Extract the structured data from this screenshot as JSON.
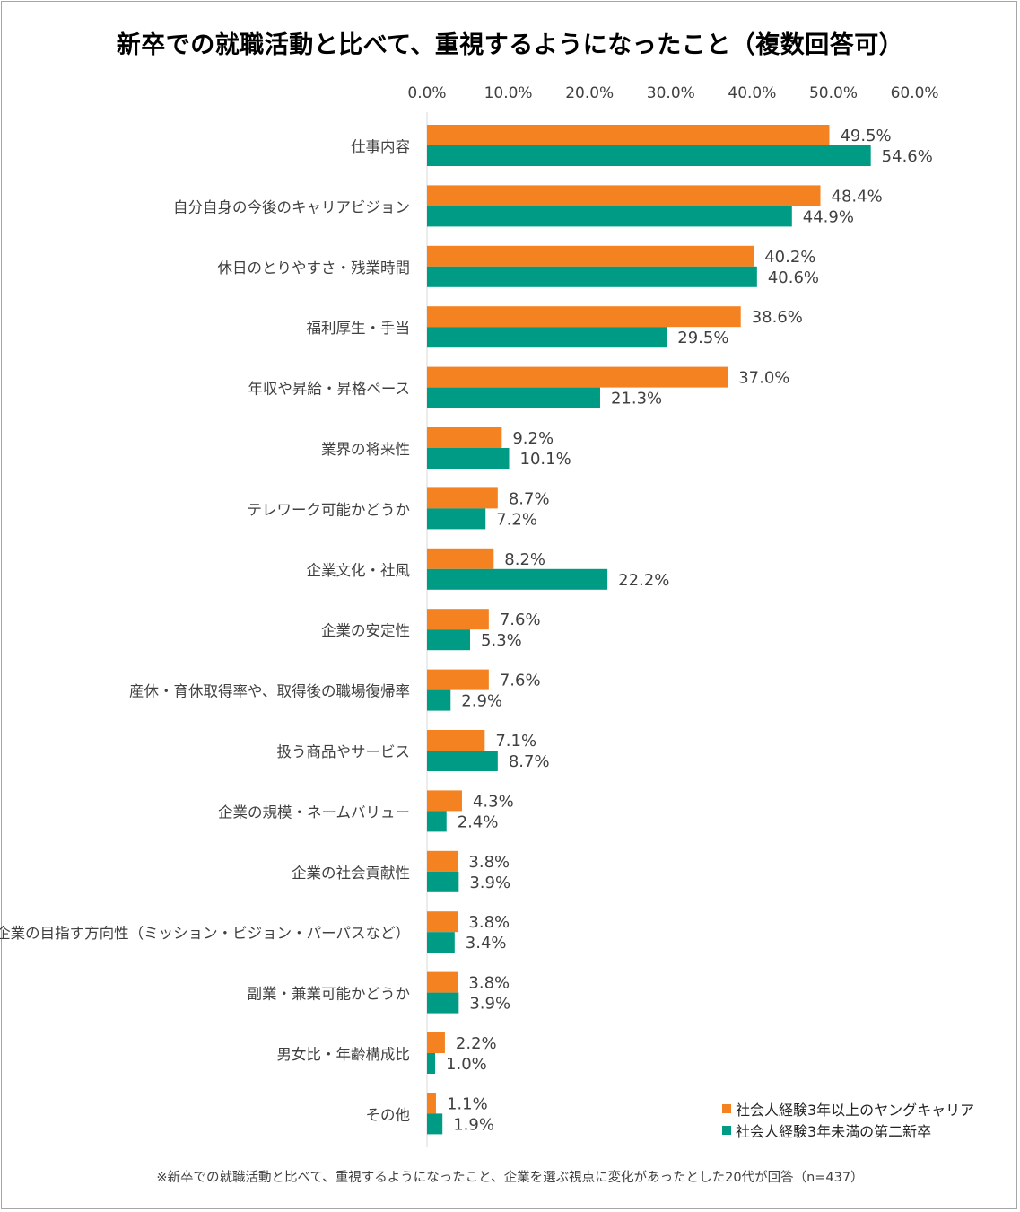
{
  "title": "新卒での就職活動と比べて、重視するようになったこと（複数回答可）",
  "footnote": "※新卒での就職活動と比べて、重視するようになったこと、企業を選ぶ視点に変化があったとした20代が回答（n=437）",
  "chart_data": {
    "type": "bar",
    "orientation": "horizontal",
    "categories": [
      "仕事内容",
      "自分自身の今後のキャリアビジョン",
      "休日のとりやすさ・残業時間",
      "福利厚生・手当",
      "年収や昇給・昇格ペース",
      "業界の将来性",
      "テレワーク可能かどうか",
      "企業文化・社風",
      "企業の安定性",
      "産休・育休取得率や、取得後の職場復帰率",
      "扱う商品やサービス",
      "企業の規模・ネームバリュー",
      "企業の社会貢献性",
      "企業の目指す方向性（ミッション・ビジョン・パーパスなど）",
      "副業・兼業可能かどうか",
      "男女比・年齢構成比",
      "その他"
    ],
    "series": [
      {
        "name": "社会人経験3年以上のヤングキャリア",
        "color": "#f58220",
        "values": [
          49.5,
          48.4,
          40.2,
          38.6,
          37.0,
          9.2,
          8.7,
          8.2,
          7.6,
          7.6,
          7.1,
          4.3,
          3.8,
          3.8,
          3.8,
          2.2,
          1.1
        ]
      },
      {
        "name": "社会人経験3年未満の第二新卒",
        "color": "#009b84",
        "values": [
          54.6,
          44.9,
          40.6,
          29.5,
          21.3,
          10.1,
          7.2,
          22.2,
          5.3,
          2.9,
          8.7,
          2.4,
          3.9,
          3.4,
          3.9,
          1.0,
          1.9
        ]
      }
    ],
    "xlim": [
      0,
      60
    ],
    "xticks": [
      "0.0%",
      "10.0%",
      "20.0%",
      "30.0%",
      "40.0%",
      "50.0%",
      "60.0%"
    ],
    "tick_values": [
      0,
      10,
      20,
      30,
      40,
      50,
      60
    ],
    "value_format": "%",
    "legend_position": "bottom-right",
    "grid": false
  }
}
